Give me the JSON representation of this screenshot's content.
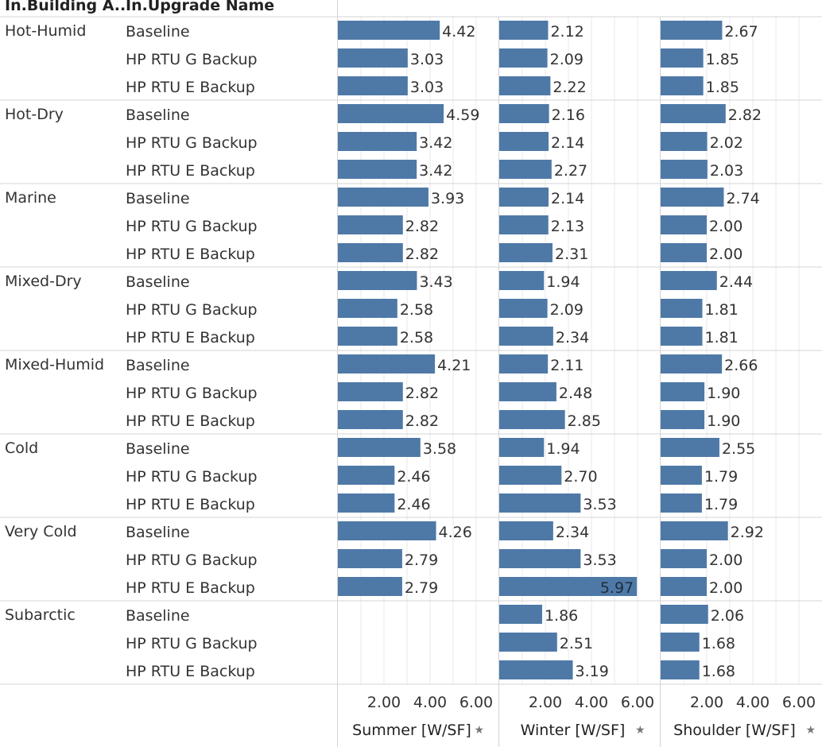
{
  "headers": {
    "col1": "In.Building A..",
    "col2": "In.Upgrade Name"
  },
  "colors": {
    "bar": "#4e79a7",
    "grid": "#e8e8e8",
    "divider": "#d4d4d4",
    "text": "#333333",
    "label_inside": "#1f2d3d"
  },
  "pin_icon": "pin-icon",
  "chart_data": {
    "type": "bar",
    "orientation": "horizontal",
    "row_dimension": "In.Building A..",
    "subrow_dimension": "In.Upgrade Name",
    "groups": [
      "Hot-Humid",
      "Hot-Dry",
      "Marine",
      "Mixed-Dry",
      "Mixed-Humid",
      "Cold",
      "Very Cold",
      "Subarctic"
    ],
    "upgrades": [
      "Baseline",
      "HP RTU G Backup",
      "HP RTU E Backup"
    ],
    "panels": [
      {
        "name": "Summer [W/SF]",
        "ticks": [
          "2.00",
          "4.00",
          "6.00"
        ],
        "xlim": [
          0,
          6.97
        ],
        "values": [
          [
            4.42,
            3.03,
            3.03
          ],
          [
            4.59,
            3.42,
            3.42
          ],
          [
            3.93,
            2.82,
            2.82
          ],
          [
            3.43,
            2.58,
            2.58
          ],
          [
            4.21,
            2.82,
            2.82
          ],
          [
            3.58,
            2.46,
            2.46
          ],
          [
            4.26,
            2.79,
            2.79
          ],
          [
            null,
            null,
            null
          ]
        ]
      },
      {
        "name": "Winter [W/SF]",
        "ticks": [
          "2.00",
          "4.00",
          "6.00"
        ],
        "xlim": [
          0,
          6.97
        ],
        "values": [
          [
            2.12,
            2.09,
            2.22
          ],
          [
            2.16,
            2.14,
            2.27
          ],
          [
            2.14,
            2.13,
            2.31
          ],
          [
            1.94,
            2.09,
            2.34
          ],
          [
            2.11,
            2.48,
            2.85
          ],
          [
            1.94,
            2.7,
            3.53
          ],
          [
            2.34,
            3.53,
            5.97
          ],
          [
            1.86,
            2.51,
            3.19
          ]
        ]
      },
      {
        "name": "Shoulder [W/SF]",
        "ticks": [
          "2.00",
          "4.00",
          "6.00"
        ],
        "xlim": [
          0,
          6.97
        ],
        "values": [
          [
            2.67,
            1.85,
            1.85
          ],
          [
            2.82,
            2.02,
            2.03
          ],
          [
            2.74,
            2.0,
            2.0
          ],
          [
            2.44,
            1.81,
            1.81
          ],
          [
            2.66,
            1.9,
            1.9
          ],
          [
            2.55,
            1.79,
            1.79
          ],
          [
            2.92,
            2.0,
            2.0
          ],
          [
            2.06,
            1.68,
            1.68
          ]
        ]
      }
    ],
    "grid": true,
    "legend": "none"
  }
}
